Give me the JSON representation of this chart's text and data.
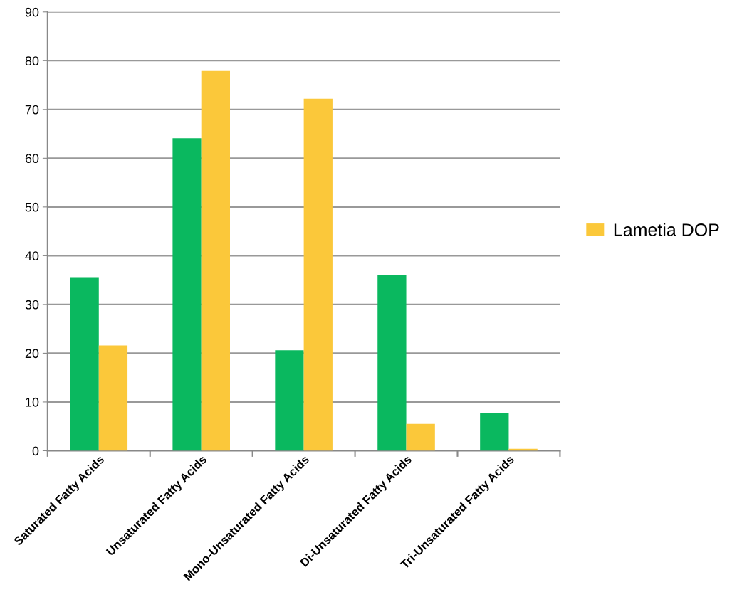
{
  "chart_data": {
    "type": "bar",
    "categories": [
      "Saturated Fatty Acids",
      "Unsaturated Fatty Acids",
      "Mono-Unsaturated Fatty Acids",
      "Di-Unsaturated Fatty Acids",
      "Tri-Unsaturated Fatty Acids"
    ],
    "series": [
      {
        "color": "#0ab85f",
        "values": [
          35.6,
          64.1,
          20.6,
          36.0,
          7.8
        ]
      },
      {
        "name": "Lametia DOP",
        "color": "#fbc83a",
        "values": [
          21.6,
          77.9,
          72.2,
          5.5,
          0.4
        ]
      }
    ],
    "ylim": [
      0,
      90
    ],
    "yticks": [
      0,
      10,
      20,
      30,
      40,
      50,
      60,
      70,
      80,
      90
    ],
    "grid": "y",
    "legend": "right"
  }
}
